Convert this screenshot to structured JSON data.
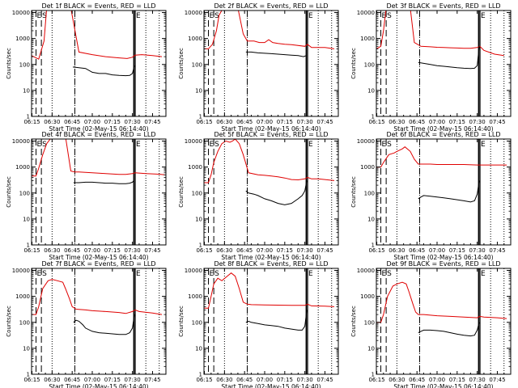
{
  "colors": {
    "background": "#ffffff",
    "axes": "#000000",
    "events": "#000000",
    "lld": "#e00000"
  },
  "shared": {
    "xlabel": "Start Time (02-May-15 06:14:40)",
    "ylabel": "Counts/sec",
    "x_tick_labels": [
      "06:15",
      "06:30",
      "06:45",
      "07:00",
      "07:15",
      "07:30",
      "07:45"
    ],
    "x_tick_minutes": [
      15,
      30,
      45,
      60,
      75,
      90,
      105
    ],
    "xlim_minutes": [
      14.67,
      115
    ],
    "y_tick_labels": [
      "1",
      "10",
      "100",
      "1000",
      "10000"
    ],
    "y_tick_values": [
      1,
      10,
      100,
      1000,
      10000
    ],
    "ylim": [
      1,
      12000
    ],
    "y_scale": "log",
    "markers": [
      {
        "label": "E",
        "style": "dashed",
        "minute": 18
      },
      {
        "label": "S",
        "style": "dashed",
        "minute": 22
      },
      {
        "label": "",
        "style": "dotted",
        "minute": 30
      },
      {
        "label": "",
        "style": "dashed",
        "minute": 47
      },
      {
        "label": "",
        "style": "dotted",
        "minute": 47
      },
      {
        "label": "",
        "style": "solid",
        "minute": 91
      },
      {
        "label": "E",
        "style": "solid",
        "minute": 92
      },
      {
        "label": "",
        "style": "dotted",
        "minute": 100
      },
      {
        "label": "",
        "style": "dotted",
        "minute": 110
      }
    ]
  },
  "chart_data": [
    {
      "type": "line",
      "title": "Det 1f BLACK = Events, RED = LLD",
      "series": [
        {
          "name": "LLD",
          "color": "#e00000",
          "x": [
            14.67,
            20,
            24,
            26,
            29,
            31,
            44,
            50,
            60,
            70,
            80,
            86,
            90,
            92,
            97,
            105,
            112
          ],
          "y": [
            220,
            160,
            800,
            15000,
            15000,
            15000,
            15000,
            300,
            240,
            200,
            180,
            170,
            190,
            230,
            240,
            220,
            200
          ]
        },
        {
          "name": "Events",
          "color": "#000000",
          "x": [
            45.5,
            50,
            55,
            60,
            65,
            70,
            75,
            80,
            85,
            88,
            90,
            91.5
          ],
          "y": [
            80,
            75,
            70,
            50,
            45,
            45,
            40,
            38,
            37,
            38,
            45,
            90
          ]
        }
      ]
    },
    {
      "type": "line",
      "title": "Det 2f BLACK = Events, RED = LLD",
      "series": [
        {
          "name": "LLD",
          "color": "#e00000",
          "x": [
            14.67,
            18,
            21,
            24,
            26,
            29,
            32,
            40,
            44,
            47,
            52,
            56,
            60,
            63,
            66,
            70,
            75,
            80,
            90,
            92,
            95,
            105,
            112
          ],
          "y": [
            400,
            400,
            600,
            2000,
            8000,
            15000,
            15000,
            15000,
            1500,
            800,
            800,
            700,
            700,
            900,
            700,
            650,
            600,
            580,
            500,
            600,
            450,
            450,
            400
          ]
        },
        {
          "name": "Events",
          "color": "#000000",
          "x": [
            46,
            50,
            55,
            60,
            65,
            70,
            75,
            80,
            85,
            89,
            91
          ],
          "y": [
            300,
            300,
            280,
            270,
            260,
            250,
            240,
            230,
            220,
            200,
            220
          ]
        }
      ]
    },
    {
      "type": "line",
      "title": "Det 3f BLACK = Events, RED = LLD",
      "series": [
        {
          "name": "LLD",
          "color": "#e00000",
          "x": [
            14.67,
            18,
            20,
            22,
            25,
            30,
            40,
            43,
            48,
            55,
            60,
            65,
            70,
            75,
            80,
            85,
            90,
            92,
            95,
            103,
            110
          ],
          "y": [
            400,
            500,
            2000,
            15000,
            15000,
            15000,
            15000,
            700,
            500,
            480,
            460,
            450,
            440,
            430,
            420,
            420,
            450,
            500,
            350,
            250,
            220
          ]
        },
        {
          "name": "Events",
          "color": "#000000",
          "x": [
            46,
            50,
            55,
            60,
            65,
            70,
            75,
            80,
            85,
            88,
            90,
            91.5
          ],
          "y": [
            120,
            110,
            100,
            90,
            85,
            80,
            75,
            72,
            70,
            72,
            90,
            500
          ]
        }
      ]
    },
    {
      "type": "line",
      "title": "Det 4f BLACK = Events, RED = LLD",
      "series": [
        {
          "name": "LLD",
          "color": "#e00000",
          "x": [
            14.67,
            18,
            20,
            23,
            26,
            30,
            40,
            44,
            47,
            50,
            55,
            60,
            65,
            70,
            75,
            80,
            85,
            90,
            92,
            100,
            110,
            114
          ],
          "y": [
            450,
            450,
            900,
            3000,
            8000,
            15000,
            15000,
            700,
            650,
            650,
            620,
            600,
            580,
            560,
            540,
            520,
            520,
            560,
            600,
            560,
            530,
            500
          ]
        },
        {
          "name": "Events",
          "color": "#000000",
          "x": [
            46,
            50,
            55,
            60,
            65,
            70,
            75,
            80,
            85,
            88,
            90,
            91
          ],
          "y": [
            250,
            250,
            260,
            260,
            250,
            240,
            240,
            230,
            230,
            240,
            260,
            300
          ]
        }
      ]
    },
    {
      "type": "line",
      "title": "Det 5f BLACK = Events, RED = LLD",
      "series": [
        {
          "name": "LLD",
          "color": "#e00000",
          "x": [
            14.67,
            18,
            20,
            22,
            25,
            28,
            31,
            34,
            36,
            38,
            41,
            44,
            48,
            55,
            60,
            65,
            70,
            75,
            80,
            85,
            90,
            92,
            95,
            100,
            112
          ],
          "y": [
            250,
            250,
            500,
            1500,
            4000,
            8000,
            10000,
            9000,
            10000,
            12000,
            8000,
            3000,
            600,
            500,
            480,
            450,
            420,
            380,
            330,
            320,
            350,
            400,
            350,
            350,
            300
          ]
        },
        {
          "name": "Events",
          "color": "#000000",
          "x": [
            46,
            48,
            52,
            55,
            60,
            65,
            70,
            75,
            80,
            85,
            88,
            90,
            91.5
          ],
          "y": [
            120,
            100,
            90,
            80,
            60,
            50,
            40,
            35,
            40,
            60,
            80,
            120,
            300
          ]
        }
      ]
    },
    {
      "type": "line",
      "title": "Det 6f BLACK = Events, RED = LLD",
      "series": [
        {
          "name": "LLD",
          "color": "#e00000",
          "x": [
            14.67,
            18,
            20,
            24,
            28,
            30,
            34,
            36,
            40,
            43,
            46,
            55,
            60,
            70,
            80,
            90,
            95,
            105,
            112
          ],
          "y": [
            1000,
            1000,
            1500,
            3000,
            3500,
            4000,
            5000,
            6000,
            4000,
            2000,
            1300,
            1300,
            1250,
            1250,
            1250,
            1200,
            1200,
            1200,
            1200
          ]
        },
        {
          "name": "Events",
          "color": "#000000",
          "x": [
            46,
            48,
            50,
            55,
            60,
            65,
            70,
            75,
            80,
            85,
            88,
            90,
            91.5
          ],
          "y": [
            60,
            70,
            80,
            75,
            70,
            65,
            60,
            55,
            50,
            45,
            50,
            90,
            300
          ]
        }
      ]
    },
    {
      "type": "line",
      "title": "Det 7f BLACK = Events, RED = LLD",
      "series": [
        {
          "name": "LLD",
          "color": "#e00000",
          "x": [
            14.67,
            18,
            20,
            23,
            27,
            30,
            34,
            38,
            40,
            43,
            45,
            48,
            55,
            60,
            65,
            70,
            75,
            80,
            85,
            90,
            92,
            95,
            105,
            112
          ],
          "y": [
            200,
            200,
            400,
            2000,
            4000,
            4500,
            4000,
            3500,
            2000,
            800,
            400,
            320,
            300,
            280,
            270,
            260,
            250,
            240,
            220,
            260,
            300,
            260,
            230,
            200
          ]
        },
        {
          "name": "Events",
          "color": "#000000",
          "x": [
            46,
            48,
            50,
            53,
            55,
            60,
            65,
            70,
            75,
            80,
            85,
            88,
            90,
            91.5
          ],
          "y": [
            100,
            120,
            110,
            80,
            60,
            45,
            40,
            38,
            36,
            34,
            34,
            40,
            60,
            200
          ]
        }
      ]
    },
    {
      "type": "line",
      "title": "Det 8f BLACK = Events, RED = LLD",
      "series": [
        {
          "name": "LLD",
          "color": "#e00000",
          "x": [
            14.67,
            18,
            20,
            22,
            25,
            28,
            32,
            35,
            38,
            41,
            44,
            47,
            50,
            60,
            70,
            80,
            90,
            92,
            95,
            105,
            112
          ],
          "y": [
            350,
            350,
            1000,
            3000,
            5000,
            4000,
            6000,
            8000,
            6000,
            2000,
            600,
            500,
            480,
            470,
            460,
            450,
            450,
            500,
            430,
            420,
            400
          ]
        },
        {
          "name": "Events",
          "color": "#000000",
          "x": [
            46,
            48,
            50,
            55,
            60,
            65,
            70,
            75,
            80,
            85,
            88,
            90,
            91.5
          ],
          "y": [
            100,
            110,
            100,
            90,
            80,
            75,
            70,
            60,
            55,
            50,
            50,
            70,
            300
          ]
        }
      ]
    },
    {
      "type": "line",
      "title": "Det 9f BLACK = Events, RED = LLD",
      "series": [
        {
          "name": "LLD",
          "color": "#e00000",
          "x": [
            14.67,
            18,
            20,
            23,
            27,
            30,
            34,
            37,
            39,
            42,
            44,
            46,
            50,
            60,
            70,
            80,
            90,
            92,
            95,
            105,
            112
          ],
          "y": [
            100,
            100,
            200,
            1000,
            2500,
            3000,
            3500,
            3000,
            1500,
            500,
            250,
            200,
            200,
            180,
            170,
            160,
            150,
            170,
            160,
            150,
            140
          ]
        },
        {
          "name": "Events",
          "color": "#000000",
          "x": [
            46,
            48,
            50,
            55,
            60,
            65,
            70,
            75,
            80,
            85,
            88,
            90,
            91.5
          ],
          "y": [
            40,
            45,
            50,
            50,
            48,
            45,
            40,
            35,
            32,
            30,
            32,
            50,
            100
          ]
        }
      ]
    }
  ]
}
